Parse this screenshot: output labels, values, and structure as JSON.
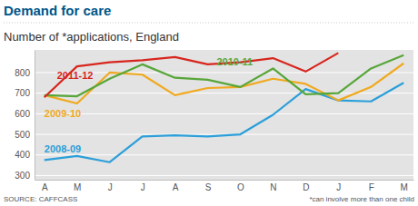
{
  "chart_data": {
    "type": "line",
    "title": "Demand for care",
    "subtitle": "Number of *applications, England",
    "annotations": [
      "SOURCE: CAFFCASS",
      "*can involve more than one child"
    ],
    "categories": [
      "A",
      "M",
      "J",
      "J",
      "A",
      "S",
      "O",
      "N",
      "D",
      "J",
      "F",
      "M"
    ],
    "ylim": [
      280,
      910
    ],
    "yticks": [
      300,
      400,
      500,
      600,
      700,
      800
    ],
    "grid": true,
    "series": [
      {
        "name": "2011-12",
        "color": "#d7261e",
        "values": [
          680,
          830,
          850,
          860,
          875,
          840,
          850,
          870,
          805,
          895,
          null,
          null
        ]
      },
      {
        "name": "2010-11",
        "color": "#57a639",
        "values": [
          690,
          685,
          770,
          840,
          775,
          765,
          730,
          820,
          695,
          700,
          820,
          885
        ]
      },
      {
        "name": "2009-10",
        "color": "#f0a91f",
        "values": [
          690,
          650,
          800,
          790,
          690,
          725,
          730,
          770,
          745,
          665,
          730,
          845
        ]
      },
      {
        "name": "2008-09",
        "color": "#2b9fd9",
        "values": [
          375,
          395,
          365,
          490,
          495,
          490,
          500,
          595,
          720,
          665,
          660,
          750
        ]
      }
    ]
  }
}
